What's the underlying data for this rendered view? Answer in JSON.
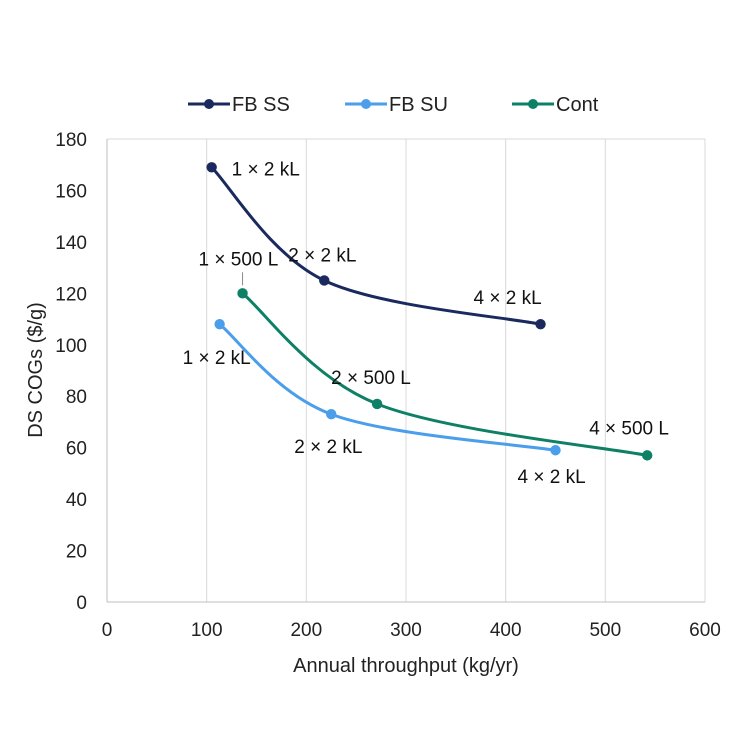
{
  "chart_data": {
    "type": "line",
    "xlabel": "Annual throughput (kg/yr)",
    "ylabel": "DS COGs ($/g)",
    "xlim": [
      0,
      600
    ],
    "ylim": [
      0,
      180
    ],
    "x_ticks": [
      0,
      100,
      200,
      300,
      400,
      500,
      600
    ],
    "y_ticks": [
      0,
      20,
      40,
      60,
      80,
      100,
      120,
      140,
      160,
      180
    ],
    "grid": "vertical",
    "legend_position": "top",
    "smoothed": true,
    "series": [
      {
        "name": "FB SS",
        "color": "#1b2a5e",
        "points": [
          {
            "x": 105,
            "y": 169,
            "label": "1 × 2 kL"
          },
          {
            "x": 218,
            "y": 125,
            "label": "2 × 2 kL"
          },
          {
            "x": 435,
            "y": 108,
            "label": "4 × 2 kL"
          }
        ]
      },
      {
        "name": "FB SU",
        "color": "#4a9eea",
        "points": [
          {
            "x": 113,
            "y": 108,
            "label": "1 × 2 kL"
          },
          {
            "x": 225,
            "y": 73,
            "label": "2 × 2 kL"
          },
          {
            "x": 450,
            "y": 59,
            "label": "4 × 2 kL"
          }
        ]
      },
      {
        "name": "Cont",
        "color": "#0e8065",
        "points": [
          {
            "x": 136,
            "y": 120,
            "label": "1 × 500 L"
          },
          {
            "x": 271,
            "y": 77,
            "label": "2 × 500 L"
          },
          {
            "x": 542,
            "y": 57,
            "label": "4 × 500 L"
          }
        ]
      }
    ]
  }
}
